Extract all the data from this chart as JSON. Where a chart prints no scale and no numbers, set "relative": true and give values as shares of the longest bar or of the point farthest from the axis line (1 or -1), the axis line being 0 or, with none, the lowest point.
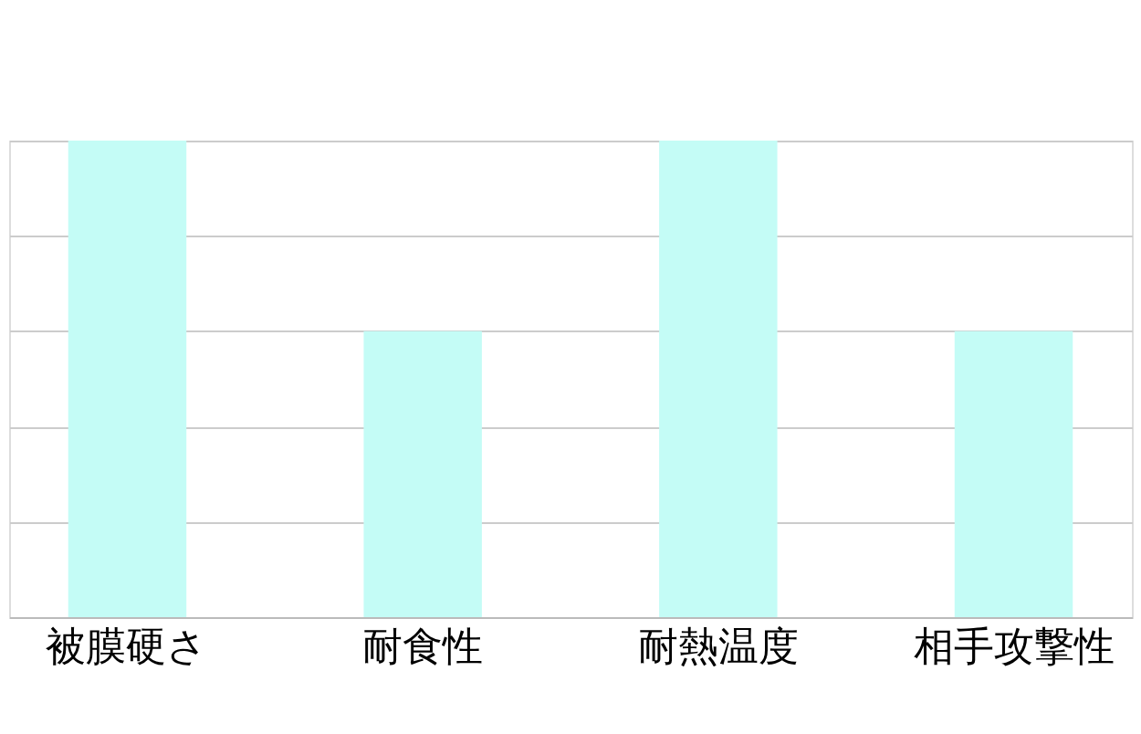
{
  "chart_data": {
    "type": "bar",
    "relative": true,
    "categories": [
      "被膜硬さ",
      "耐食性",
      "耐熱温度",
      "相手攻撃性"
    ],
    "values": [
      1,
      0.6,
      1,
      0.6
    ],
    "color": "#c4fcf6",
    "grid": "y"
  }
}
